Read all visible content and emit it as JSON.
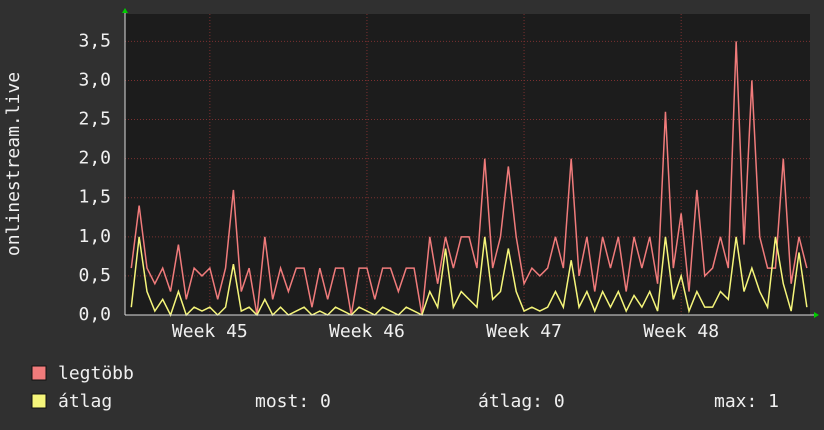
{
  "chart_data": {
    "type": "line",
    "y_label": "onlinestream.live",
    "x": [
      44.5,
      44.55,
      44.6,
      44.65,
      44.7,
      44.75,
      44.8,
      44.85,
      44.9,
      44.95,
      45.0,
      45.05,
      45.1,
      45.15,
      45.2,
      45.25,
      45.3,
      45.35,
      45.4,
      45.45,
      45.5,
      45.55,
      45.6,
      45.65,
      45.7,
      45.75,
      45.8,
      45.85,
      45.9,
      45.95,
      46.0,
      46.05,
      46.1,
      46.15,
      46.2,
      46.25,
      46.3,
      46.35,
      46.4,
      46.45,
      46.5,
      46.55,
      46.6,
      46.65,
      46.7,
      46.75,
      46.8,
      46.85,
      46.9,
      46.95,
      47.0,
      47.05,
      47.1,
      47.15,
      47.2,
      47.25,
      47.3,
      47.35,
      47.4,
      47.45,
      47.5,
      47.55,
      47.6,
      47.65,
      47.7,
      47.75,
      47.8,
      47.85,
      47.9,
      47.95,
      48.0,
      48.05,
      48.1,
      48.15,
      48.2,
      48.25,
      48.3,
      48.35,
      48.4,
      48.45,
      48.5,
      48.55,
      48.6,
      48.65,
      48.7,
      48.75,
      48.8
    ],
    "series": [
      {
        "name": "legtöbb",
        "color": "#f07b7b",
        "values": [
          0.6,
          1.4,
          0.6,
          0.4,
          0.6,
          0.3,
          0.9,
          0.2,
          0.6,
          0.5,
          0.6,
          0.2,
          0.6,
          1.6,
          0.3,
          0.6,
          0,
          1.0,
          0.2,
          0.6,
          0.3,
          0.6,
          0.6,
          0.1,
          0.6,
          0.2,
          0.6,
          0.6,
          0,
          0.6,
          0.6,
          0.2,
          0.6,
          0.6,
          0.3,
          0.6,
          0.6,
          0,
          1.0,
          0.4,
          1.0,
          0.6,
          1.0,
          1.0,
          0.6,
          2.0,
          0.6,
          1.0,
          1.9,
          1.0,
          0.4,
          0.6,
          0.5,
          0.6,
          1.0,
          0.6,
          2.0,
          0.5,
          1.0,
          0.3,
          1.0,
          0.6,
          1.0,
          0.3,
          1.0,
          0.6,
          1.0,
          0.4,
          2.6,
          0.6,
          1.3,
          0.3,
          1.6,
          0.5,
          0.6,
          1.0,
          0.6,
          3.5,
          0.9,
          3.0,
          1.0,
          0.6,
          0.6,
          2.0,
          0.4,
          1.0,
          0.6
        ]
      },
      {
        "name": "átlag",
        "color": "#f5f57a",
        "values": [
          0.1,
          1.0,
          0.3,
          0.05,
          0.2,
          0,
          0.3,
          0,
          0.1,
          0.05,
          0.1,
          0,
          0.1,
          0.65,
          0.05,
          0.1,
          0,
          0.2,
          0,
          0.1,
          0,
          0.05,
          0.1,
          0,
          0.05,
          0,
          0.1,
          0.05,
          0,
          0.1,
          0.05,
          0,
          0.1,
          0.05,
          0,
          0.1,
          0.05,
          0,
          0.3,
          0.1,
          0.85,
          0.1,
          0.3,
          0.2,
          0.1,
          1.0,
          0.2,
          0.3,
          0.85,
          0.3,
          0.05,
          0.1,
          0.05,
          0.1,
          0.3,
          0.1,
          0.7,
          0.1,
          0.3,
          0.05,
          0.3,
          0.1,
          0.3,
          0.05,
          0.25,
          0.1,
          0.3,
          0.05,
          1.0,
          0.2,
          0.5,
          0.05,
          0.3,
          0.1,
          0.1,
          0.3,
          0.2,
          1.0,
          0.3,
          0.6,
          0.3,
          0.1,
          1.0,
          0.4,
          0.05,
          0.8,
          0.1
        ]
      }
    ],
    "xlim": [
      44.46,
      48.82
    ],
    "xticks": [
      {
        "value": 45,
        "label": "Week 45"
      },
      {
        "value": 46,
        "label": "Week 46"
      },
      {
        "value": 47,
        "label": "Week 47"
      },
      {
        "value": 48,
        "label": "Week 48"
      }
    ],
    "ylim": [
      0,
      3.85
    ],
    "yticks": [
      {
        "value": 0,
        "label": "0,0"
      },
      {
        "value": 0.5,
        "label": "0,5"
      },
      {
        "value": 1,
        "label": "1,0"
      },
      {
        "value": 1.5,
        "label": "1,5"
      },
      {
        "value": 2,
        "label": "2,0"
      },
      {
        "value": 2.5,
        "label": "2,5"
      },
      {
        "value": 3,
        "label": "3,0"
      },
      {
        "value": 3.5,
        "label": "3,5"
      }
    ],
    "grid": true,
    "stats": [
      "most: 0",
      "átlag: 0",
      "max: 1"
    ]
  }
}
